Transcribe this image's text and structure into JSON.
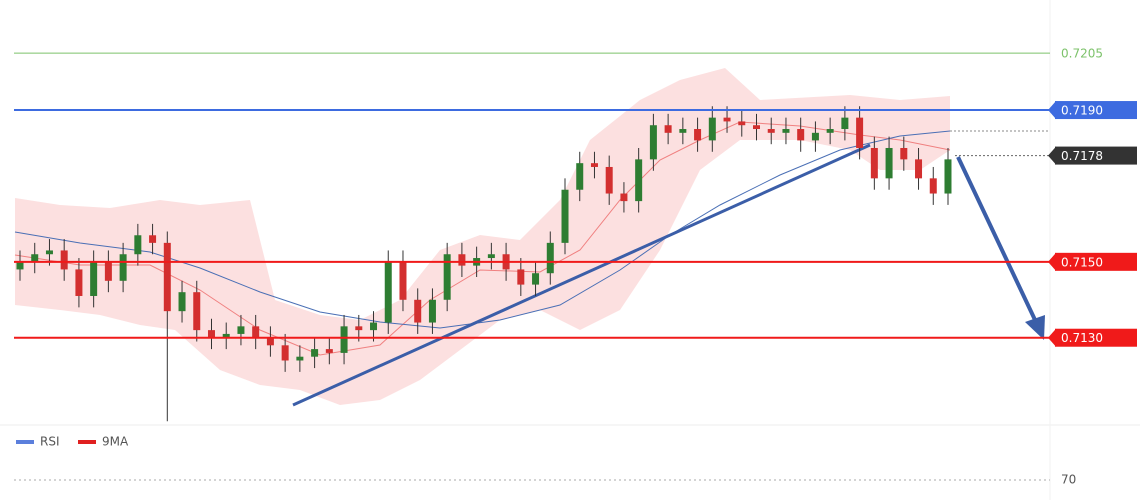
{
  "chart_data": {
    "type": "candlestick",
    "ylim": [
      0.7107,
      0.7219
    ],
    "open": [
      0.7148,
      0.715,
      0.7152,
      0.7153,
      0.7148,
      0.7141,
      0.715,
      0.7145,
      0.7152,
      0.7157,
      0.7155,
      0.7137,
      0.7142,
      0.7132,
      0.713,
      0.7131,
      0.7133,
      0.713,
      0.7128,
      0.7124,
      0.7125,
      0.7127,
      0.7126,
      0.7133,
      0.7132,
      0.7134,
      0.715,
      0.714,
      0.7134,
      0.714,
      0.7152,
      0.7149,
      0.7151,
      0.7152,
      0.7148,
      0.7144,
      0.7147,
      0.7155,
      0.7169,
      0.7176,
      0.7175,
      0.7168,
      0.7166,
      0.7177,
      0.7186,
      0.7184,
      0.7185,
      0.7182,
      0.7188,
      0.7187,
      0.7186,
      0.7185,
      0.7184,
      0.7185,
      0.7182,
      0.7184,
      0.7185,
      0.7188,
      0.718,
      0.7172,
      0.718,
      0.7177,
      0.7172,
      0.7168
    ],
    "high": [
      0.7153,
      0.7155,
      0.7156,
      0.7156,
      0.7151,
      0.7153,
      0.7153,
      0.7155,
      0.716,
      0.716,
      0.7158,
      0.7145,
      0.7145,
      0.7135,
      0.7134,
      0.7136,
      0.7136,
      0.7133,
      0.7131,
      0.7128,
      0.713,
      0.713,
      0.7136,
      0.7136,
      0.7137,
      0.7153,
      0.7153,
      0.7143,
      0.7143,
      0.7155,
      0.7155,
      0.7154,
      0.7155,
      0.7155,
      0.7151,
      0.715,
      0.7158,
      0.7172,
      0.7179,
      0.7179,
      0.7178,
      0.7171,
      0.718,
      0.7189,
      0.7189,
      0.7188,
      0.7188,
      0.7191,
      0.7191,
      0.719,
      0.7189,
      0.7188,
      0.7188,
      0.7188,
      0.7187,
      0.7188,
      0.7191,
      0.7191,
      0.7183,
      0.7183,
      0.7183,
      0.718,
      0.7175,
      0.718
    ],
    "low": [
      0.7145,
      0.7147,
      0.7149,
      0.7145,
      0.7138,
      0.7138,
      0.7142,
      0.7142,
      0.7149,
      0.7152,
      0.7108,
      0.7134,
      0.7129,
      0.7127,
      0.7127,
      0.7128,
      0.7127,
      0.7125,
      0.7121,
      0.7121,
      0.7122,
      0.7123,
      0.7123,
      0.7129,
      0.7129,
      0.7131,
      0.7137,
      0.7131,
      0.7131,
      0.7137,
      0.7146,
      0.7146,
      0.7148,
      0.7145,
      0.7141,
      0.7141,
      0.7144,
      0.7152,
      0.7166,
      0.7172,
      0.7165,
      0.7163,
      0.7163,
      0.7174,
      0.7181,
      0.7181,
      0.7179,
      0.7179,
      0.7184,
      0.7183,
      0.7182,
      0.7181,
      0.7181,
      0.7179,
      0.7179,
      0.7181,
      0.7182,
      0.7177,
      0.7169,
      0.7169,
      0.7174,
      0.7169,
      0.7165,
      0.7165
    ],
    "close": [
      0.715,
      0.7152,
      0.7153,
      0.7148,
      0.7141,
      0.715,
      0.7145,
      0.7152,
      0.7157,
      0.7155,
      0.7137,
      0.7142,
      0.7132,
      0.713,
      0.7131,
      0.7133,
      0.713,
      0.7128,
      0.7124,
      0.7125,
      0.7127,
      0.7126,
      0.7133,
      0.7132,
      0.7134,
      0.715,
      0.714,
      0.7134,
      0.714,
      0.7152,
      0.7149,
      0.7151,
      0.7152,
      0.7148,
      0.7144,
      0.7147,
      0.7155,
      0.7169,
      0.7176,
      0.7175,
      0.7168,
      0.7166,
      0.7177,
      0.7186,
      0.7184,
      0.7185,
      0.7182,
      0.7188,
      0.7187,
      0.7186,
      0.7185,
      0.7184,
      0.7185,
      0.7182,
      0.7184,
      0.7185,
      0.7188,
      0.718,
      0.7172,
      0.718,
      0.7177,
      0.7172,
      0.7168,
      0.7177
    ],
    "up_color": "#2e7d32",
    "down_color": "#d32f2f",
    "levels": [
      {
        "value": 0.7205,
        "color": "#7cc26a",
        "box": false
      },
      {
        "value": 0.719,
        "label": "0.7190",
        "color": "#3d6be0",
        "box": true
      },
      {
        "value": 0.7178,
        "color": "#333333",
        "box": true,
        "dotted": true
      },
      {
        "value": 0.715,
        "label": "0.7150",
        "color": "#f01a1a",
        "box": true
      },
      {
        "value": 0.713,
        "label": "0.7130",
        "color": "#f01a1a",
        "box": true
      }
    ],
    "rsi_panel": {
      "legend": [
        {
          "name": "RSI",
          "color": "#5b7fdc"
        },
        {
          "name": "9MA",
          "color": "#e02020"
        }
      ],
      "ylim": [
        30,
        80
      ],
      "yticks": [
        70
      ]
    }
  }
}
